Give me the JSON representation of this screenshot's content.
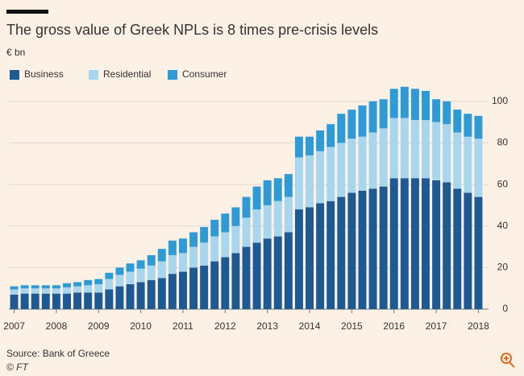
{
  "chart_data": {
    "type": "stacked_bar",
    "title": "The gross value of Greek NPLs is 8 times pre-crisis levels",
    "subtitle": "€ bn",
    "source": "Source: Bank of Greece",
    "credit": "© FT",
    "categories": [
      "2007",
      null,
      null,
      null,
      "2008",
      null,
      null,
      null,
      "2009",
      null,
      null,
      null,
      "2010",
      null,
      null,
      null,
      "2011",
      null,
      null,
      null,
      "2012",
      null,
      null,
      null,
      "2013",
      null,
      null,
      null,
      "2014",
      null,
      null,
      null,
      "2015",
      null,
      null,
      null,
      "2016",
      null,
      null,
      null,
      "2017",
      null,
      null,
      null,
      "2018"
    ],
    "series": [
      {
        "name": "Business",
        "color": "#1d5a94",
        "values": [
          7,
          7.5,
          7.5,
          7.5,
          7.5,
          7.5,
          8,
          8,
          8,
          9.5,
          11,
          12,
          13,
          14,
          15,
          17,
          18,
          20,
          21,
          23,
          25,
          27,
          30,
          32,
          34,
          35,
          37,
          48,
          49,
          51,
          52,
          54,
          56,
          57,
          58,
          59,
          63,
          63,
          63,
          63,
          62,
          61,
          58,
          56,
          54
        ]
      },
      {
        "name": "Residential",
        "color": "#a7d6ee",
        "values": [
          2.5,
          2.5,
          2.5,
          2.5,
          2.5,
          3,
          3,
          3.5,
          4,
          5,
          5.5,
          6,
          6.5,
          7,
          8,
          9,
          9,
          10,
          11,
          12,
          12,
          13,
          14,
          16,
          16,
          17,
          17,
          25,
          25,
          25,
          26,
          26,
          26,
          26,
          27,
          28,
          29,
          29,
          28,
          28,
          28,
          28,
          27,
          27,
          28
        ]
      },
      {
        "name": "Consumer",
        "color": "#2e9ad6",
        "values": [
          1.5,
          1.5,
          1.5,
          1.5,
          1.5,
          2,
          2,
          2.5,
          2.5,
          3,
          3.5,
          4,
          4,
          5,
          6,
          7,
          7,
          7,
          7.5,
          8,
          9,
          9,
          10,
          11,
          12,
          11,
          11,
          10,
          9,
          10,
          11,
          14,
          14,
          15,
          15,
          14,
          14,
          15,
          15,
          14,
          11,
          11,
          11,
          11,
          11
        ]
      }
    ],
    "ylim": [
      0,
      110
    ],
    "yticks": [
      0,
      20,
      40,
      60,
      80,
      100
    ],
    "grid": true,
    "legend": "top-left"
  }
}
